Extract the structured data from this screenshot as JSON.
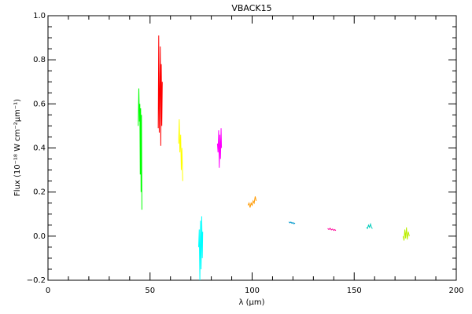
{
  "chart_data": {
    "type": "line",
    "title": "VBACK15",
    "xlabel": "λ (µm)",
    "ylabel": "Flux (10⁻¹⁸ W cm⁻²µm⁻¹)",
    "xlim": [
      0,
      200
    ],
    "ylim": [
      -0.2,
      1.0
    ],
    "xticks": [
      0,
      50,
      100,
      150,
      200
    ],
    "yticks": [
      {
        "value": -0.2,
        "label": "−0.2"
      },
      {
        "value": 0,
        "label": "0.0"
      },
      {
        "value": 0.2,
        "label": "0.2"
      },
      {
        "value": 0.4,
        "label": "0.4"
      },
      {
        "value": 0.6,
        "label": "0.6"
      },
      {
        "value": 0.8,
        "label": "0.8"
      },
      {
        "value": 1.0,
        "label": "1.0"
      }
    ],
    "xminorticks": [
      10,
      20,
      30,
      40,
      60,
      70,
      80,
      90,
      110,
      120,
      130,
      140,
      160,
      170,
      180,
      190
    ],
    "yminorticks": [
      -0.15,
      -0.1,
      -0.05,
      0.05,
      0.1,
      0.15,
      0.25,
      0.3,
      0.35,
      0.45,
      0.5,
      0.55,
      0.65,
      0.7,
      0.75,
      0.85,
      0.9,
      0.95
    ],
    "series": [
      {
        "color": "#00ff00",
        "x": [
          44.2,
          44.5,
          44.8,
          45.0,
          45.2,
          45.4,
          45.6,
          45.8,
          46.0
        ],
        "values": [
          0.5,
          0.67,
          0.52,
          0.6,
          0.28,
          0.58,
          0.2,
          0.55,
          0.12
        ]
      },
      {
        "color": "#ff0000",
        "x": [
          54.0,
          54.25,
          54.5,
          54.75,
          55.0,
          55.25,
          55.5,
          55.75,
          56.0
        ],
        "values": [
          0.49,
          0.91,
          0.47,
          0.65,
          0.86,
          0.41,
          0.78,
          0.5,
          0.7
        ]
      },
      {
        "color": "#ffff00",
        "x": [
          64.0,
          64.3,
          64.6,
          65.0,
          65.3,
          65.6,
          66.0
        ],
        "values": [
          0.42,
          0.53,
          0.38,
          0.46,
          0.3,
          0.4,
          0.25
        ]
      },
      {
        "color": "#00ffff",
        "x": [
          73.8,
          74.1,
          74.4,
          74.7,
          75.0,
          75.3,
          75.6,
          75.8
        ],
        "values": [
          -0.05,
          0.03,
          -0.2,
          0.07,
          -0.15,
          0.09,
          -0.1,
          0.02
        ]
      },
      {
        "color": "#ff00ff",
        "x": [
          83.0,
          83.3,
          83.6,
          83.9,
          84.2,
          84.5,
          84.8,
          85.0
        ],
        "values": [
          0.42,
          0.38,
          0.48,
          0.31,
          0.46,
          0.35,
          0.49,
          0.4
        ]
      },
      {
        "color": "#ff9900",
        "x": [
          98.0,
          98.5,
          99.0,
          99.5,
          100.0,
          100.5,
          101.0,
          101.5,
          102.0
        ],
        "values": [
          0.14,
          0.15,
          0.13,
          0.15,
          0.14,
          0.16,
          0.15,
          0.18,
          0.16
        ]
      },
      {
        "color": "#0099cc",
        "x": [
          118.0,
          118.5,
          119.0,
          119.5,
          120.0,
          120.5,
          121.0
        ],
        "values": [
          0.065,
          0.06,
          0.064,
          0.058,
          0.062,
          0.056,
          0.06
        ]
      },
      {
        "color": "#ff0099",
        "x": [
          137.0,
          137.6,
          138.2,
          138.8,
          139.4,
          140.0,
          140.5,
          141.0
        ],
        "values": [
          0.035,
          0.03,
          0.036,
          0.028,
          0.032,
          0.026,
          0.03,
          0.025
        ]
      },
      {
        "color": "#00ccbb",
        "x": [
          156.0,
          156.5,
          157.0,
          157.5,
          158.0,
          158.5,
          159.0
        ],
        "values": [
          0.04,
          0.035,
          0.05,
          0.04,
          0.055,
          0.038,
          0.035
        ]
      },
      {
        "color": "#bbee00",
        "x": [
          174.0,
          174.4,
          174.8,
          175.2,
          175.6,
          176.0,
          176.5,
          177.0
        ],
        "values": [
          0.0,
          -0.02,
          0.03,
          -0.01,
          0.04,
          -0.015,
          0.02,
          0.0
        ]
      }
    ]
  }
}
